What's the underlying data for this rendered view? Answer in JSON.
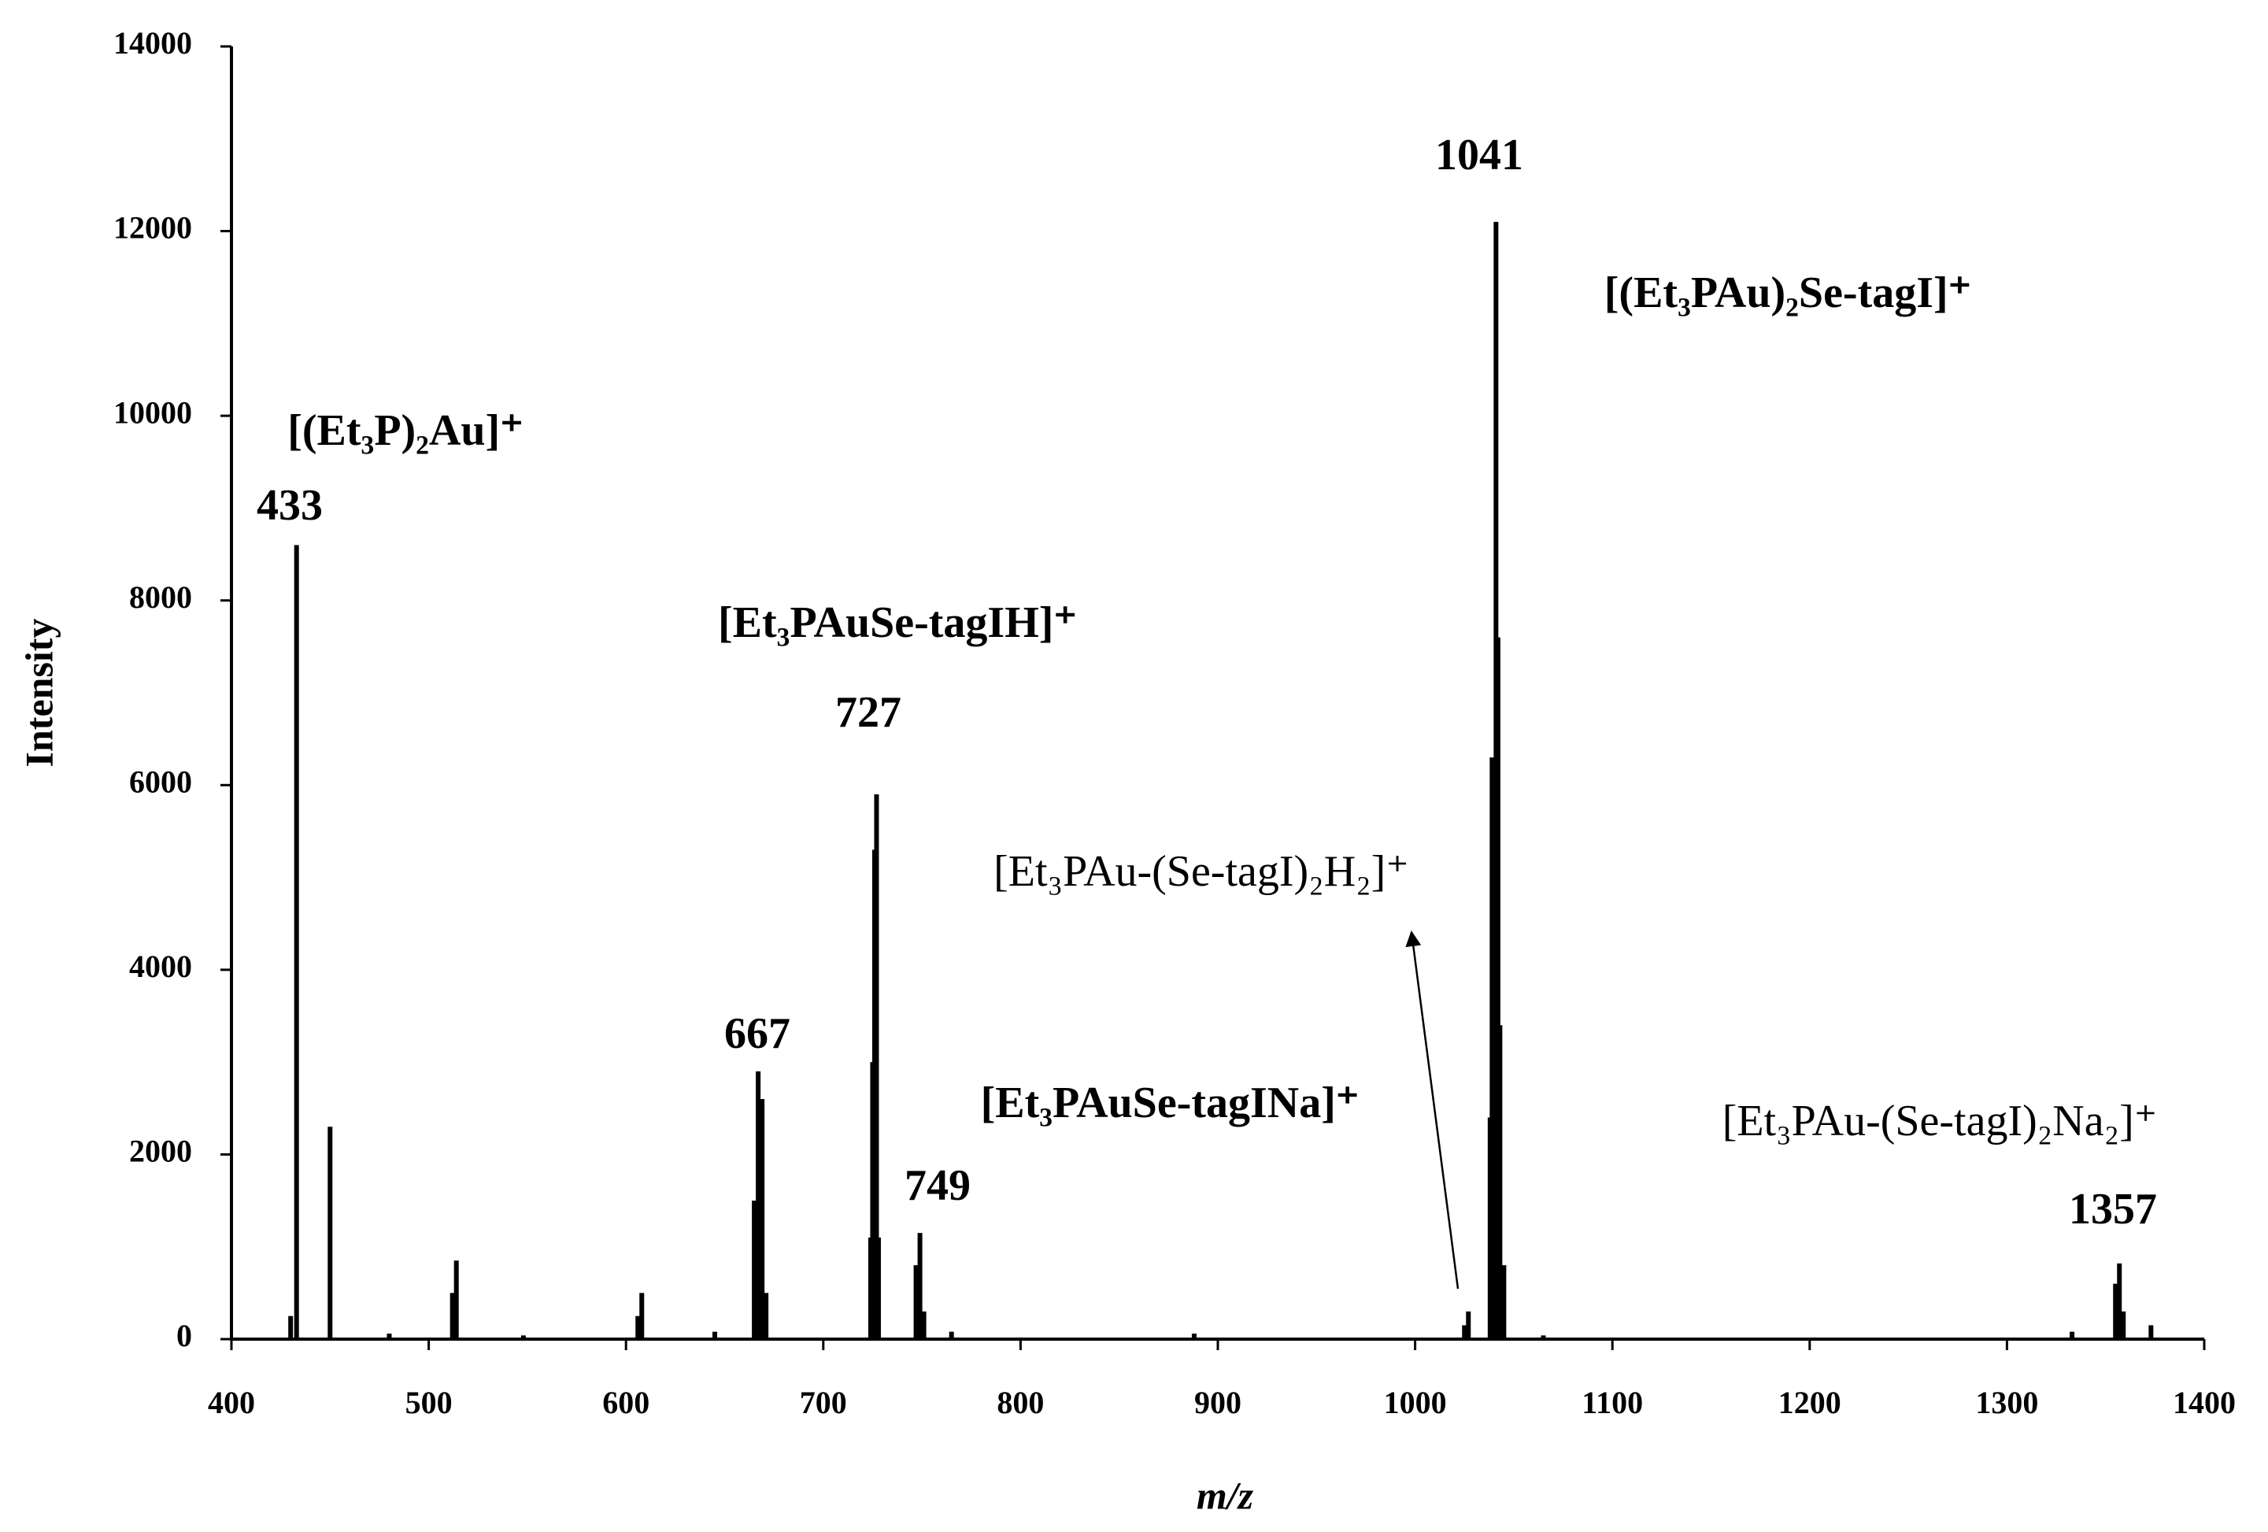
{
  "chart_data": {
    "type": "spectrum",
    "x_label": "m/z",
    "y_label": "Intensity",
    "color": "#000000",
    "xlim": [
      400,
      1400
    ],
    "xticks": [
      400,
      500,
      600,
      700,
      800,
      900,
      1000,
      1100,
      1200,
      1300,
      1400
    ],
    "ylim": [
      0,
      14000
    ],
    "yticks": [
      0,
      2000,
      4000,
      6000,
      8000,
      10000,
      12000,
      14000
    ],
    "x": [
      430,
      433,
      450,
      480,
      512,
      514,
      548,
      606,
      608,
      645,
      665,
      667,
      669,
      671,
      724,
      725,
      726,
      727,
      728,
      747,
      749,
      751,
      765,
      888,
      1025,
      1027,
      1038,
      1039,
      1041,
      1042,
      1043,
      1045,
      1065,
      1333,
      1355,
      1357,
      1359,
      1373
    ],
    "values": [
      250,
      8600,
      2300,
      60,
      500,
      850,
      40,
      250,
      500,
      80,
      1500,
      2900,
      2600,
      500,
      1100,
      3000,
      5300,
      5900,
      1100,
      800,
      1150,
      300,
      80,
      60,
      150,
      300,
      2400,
      6300,
      12100,
      7600,
      3400,
      800,
      40,
      80,
      600,
      820,
      300,
      150
    ],
    "annotations": [
      "[(Et₃P)₂Au]⁺",
      "433",
      "[Et₃PAuSe-tagIH]⁺",
      "727",
      "667",
      "[Et₃PAuSe-tagINa]⁺",
      "749",
      "[Et₃PAu-(Se-tagI)₂H₂]⁺",
      "1041",
      "[(Et₃PAu)₂Se-tagI]⁺",
      "[Et₃PAu-(Se-tagI)₂Na₂]⁺",
      "1357"
    ]
  }
}
